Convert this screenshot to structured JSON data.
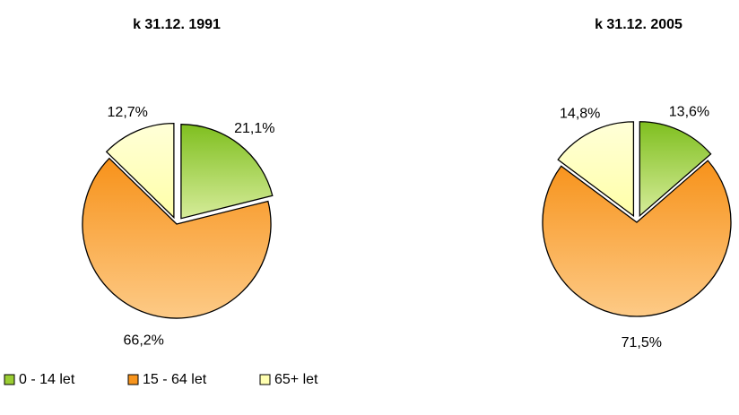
{
  "chart_data": [
    {
      "type": "pie",
      "title": "k 31.12. 1991",
      "categories": [
        "0 - 14 let",
        "15 - 64 let",
        "65+ let"
      ],
      "values": [
        21.1,
        66.2,
        12.7
      ],
      "value_labels": [
        "21,1%",
        "66,2%",
        "12,7%"
      ],
      "colors": [
        "#9acd32",
        "#f7941d",
        "#ffffb0"
      ],
      "exploded": [
        true,
        false,
        true
      ]
    },
    {
      "type": "pie",
      "title": "k 31.12. 2005",
      "categories": [
        "0 - 14 let",
        "15 - 64 let",
        "65+ let"
      ],
      "values": [
        13.6,
        71.5,
        14.8
      ],
      "value_labels": [
        "13,6%",
        "71,5%",
        "14,8%"
      ],
      "colors": [
        "#9acd32",
        "#f7941d",
        "#ffffb0"
      ],
      "exploded": [
        true,
        false,
        true
      ]
    }
  ]
}
